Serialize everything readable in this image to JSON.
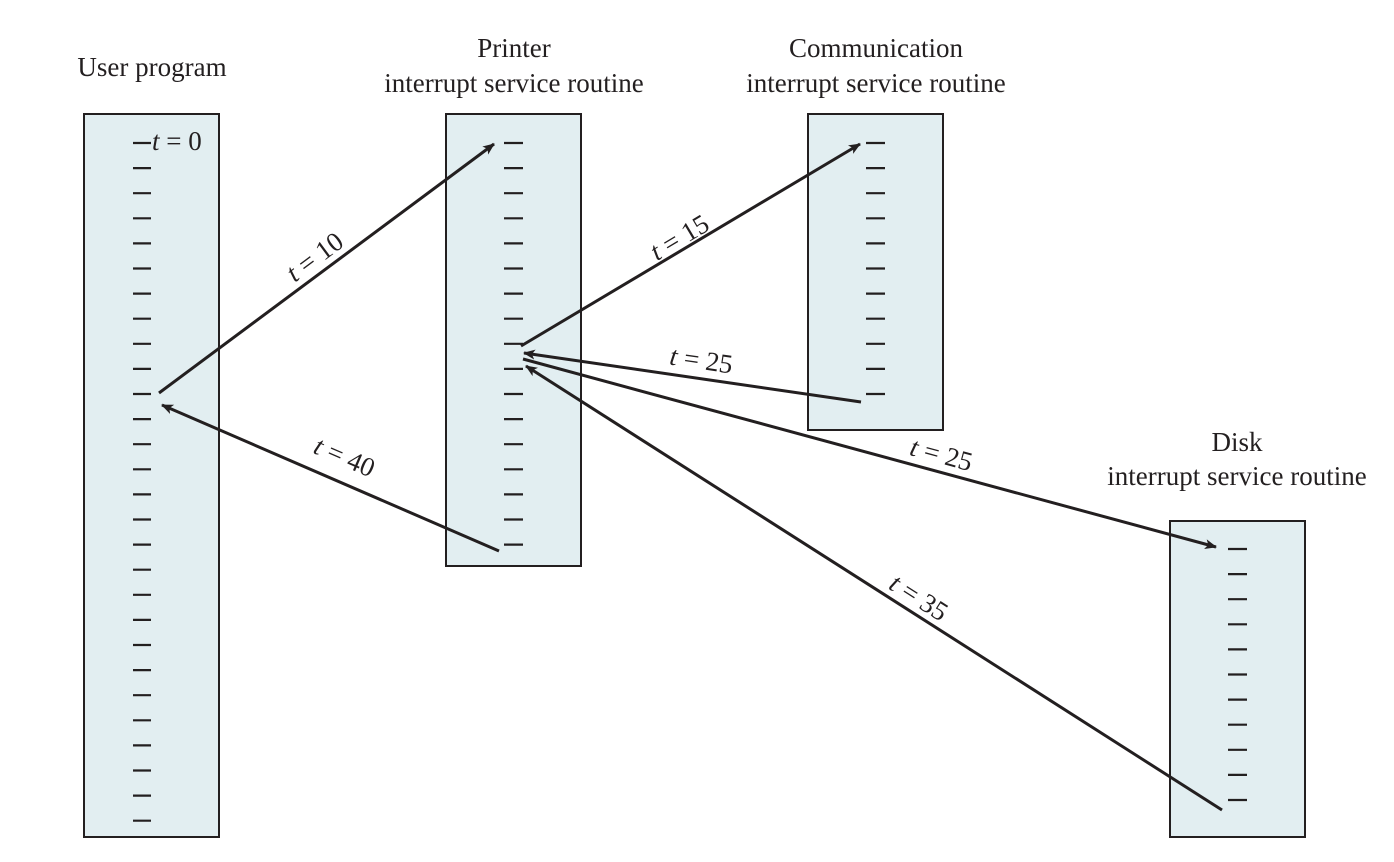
{
  "routines": {
    "user_program": {
      "title": "User program"
    },
    "printer": {
      "title_line1": "Printer",
      "title_line2": "interrupt service routine"
    },
    "communication": {
      "title_line1": "Communication",
      "title_line2": "interrupt service routine"
    },
    "disk": {
      "title_line1": "Disk",
      "title_line2": "interrupt service routine"
    }
  },
  "start_label": {
    "var": "t",
    "text": " = 0"
  },
  "transfers": [
    {
      "var": "t",
      "text": " = 10"
    },
    {
      "var": "t",
      "text": " = 15"
    },
    {
      "var": "t",
      "text": " = 25"
    },
    {
      "var": "t",
      "text": " = 25"
    },
    {
      "var": "t",
      "text": " = 35"
    },
    {
      "var": "t",
      "text": " = 40"
    }
  ]
}
